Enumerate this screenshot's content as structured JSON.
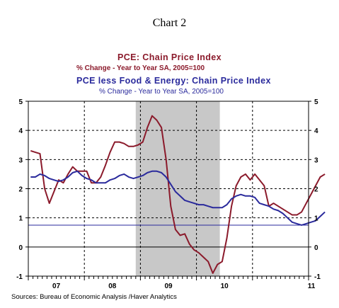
{
  "chart_data": {
    "type": "line",
    "title": "Chart 2",
    "source": "Sources:  Bureau of Economic Analysis /Haver Analytics",
    "x_start": "2006-01",
    "x_end": "2010-12",
    "x_tick_labels": [
      "07",
      "08",
      "09",
      "10",
      "11"
    ],
    "y_ticks": [
      "5",
      "4",
      "3",
      "2",
      "1",
      "0",
      "-1"
    ],
    "ylim": [
      -1,
      5
    ],
    "recession_shading": [
      "2007-12",
      "2009-06"
    ],
    "reference_line": 0.75,
    "grid": true,
    "series": [
      {
        "name": "PCE: Chain Price Index",
        "subtitle": "% Change - Year to Year     SA, 2005=100",
        "color": "#8b1a2b",
        "start": "2006-01",
        "values": [
          3.3,
          3.25,
          3.2,
          2.0,
          1.5,
          1.9,
          2.3,
          2.2,
          2.5,
          2.75,
          2.6,
          2.6,
          2.6,
          2.2,
          2.2,
          2.4,
          2.8,
          3.25,
          3.6,
          3.6,
          3.55,
          3.45,
          3.45,
          3.5,
          3.6,
          4.1,
          4.5,
          4.35,
          4.1,
          3.0,
          1.4,
          0.6,
          0.4,
          0.45,
          0.1,
          -0.1,
          -0.2,
          -0.35,
          -0.5,
          -0.9,
          -0.6,
          -0.5,
          0.3,
          1.4,
          2.1,
          2.4,
          2.5,
          2.3,
          2.5,
          2.3,
          2.1,
          1.4,
          1.5,
          1.4,
          1.3,
          1.2,
          1.1,
          1.1,
          1.2,
          1.5,
          1.8,
          2.1,
          2.4,
          2.5
        ]
      },
      {
        "name": "PCE less Food & Energy: Chain Price Index",
        "subtitle": "% Change - Year to Year     SA, 2005=100",
        "color": "#2a2a9c",
        "start": "2006-01",
        "values": [
          2.4,
          2.4,
          2.5,
          2.45,
          2.35,
          2.3,
          2.25,
          2.3,
          2.4,
          2.55,
          2.6,
          2.45,
          2.35,
          2.3,
          2.2,
          2.2,
          2.2,
          2.3,
          2.35,
          2.45,
          2.5,
          2.4,
          2.35,
          2.4,
          2.45,
          2.55,
          2.6,
          2.6,
          2.55,
          2.4,
          2.15,
          1.9,
          1.75,
          1.6,
          1.55,
          1.5,
          1.45,
          1.45,
          1.4,
          1.35,
          1.35,
          1.35,
          1.45,
          1.65,
          1.75,
          1.8,
          1.75,
          1.75,
          1.7,
          1.5,
          1.45,
          1.4,
          1.3,
          1.25,
          1.15,
          1.0,
          0.85,
          0.8,
          0.75,
          0.8,
          0.85,
          0.9,
          1.05,
          1.2
        ]
      }
    ]
  }
}
